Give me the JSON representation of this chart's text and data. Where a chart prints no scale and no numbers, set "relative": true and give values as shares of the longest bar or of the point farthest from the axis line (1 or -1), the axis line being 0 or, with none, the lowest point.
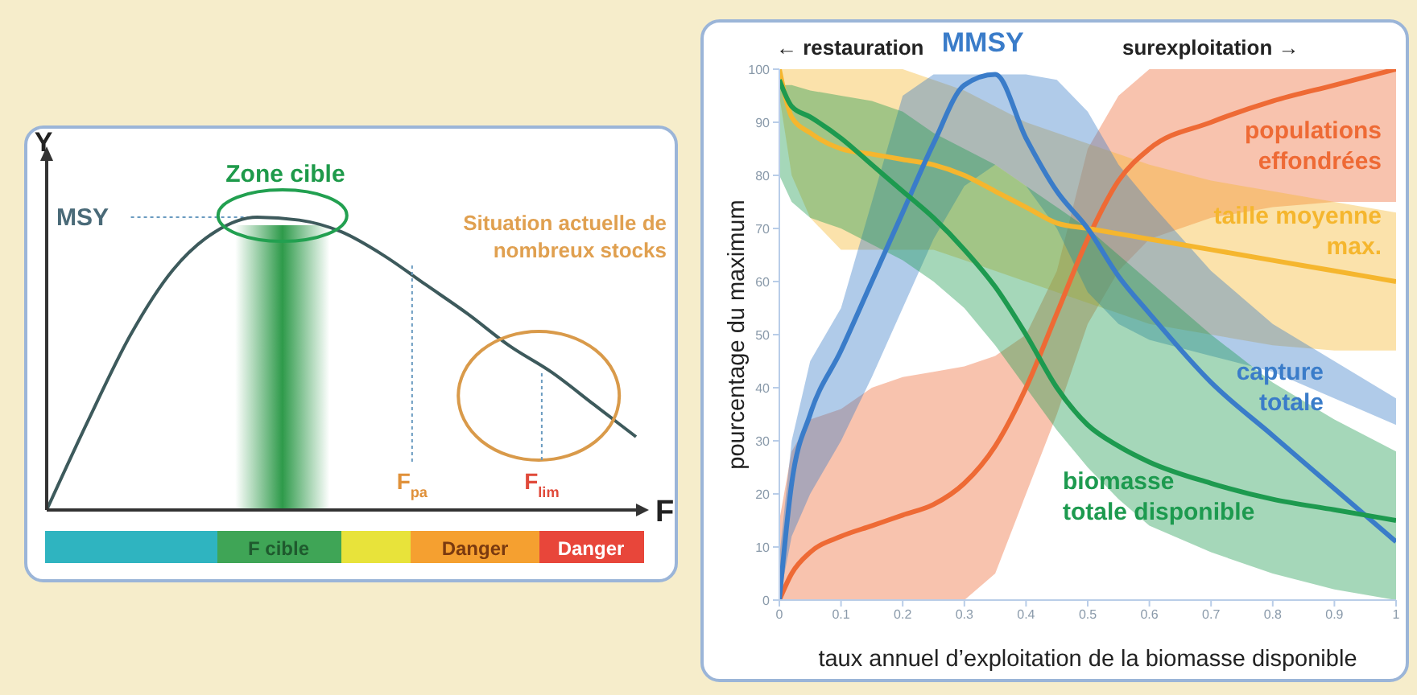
{
  "chart_data": [
    {
      "type": "line",
      "relative": true,
      "xlabel": "F",
      "ylabel": "Y",
      "categories": [
        null,
        null,
        null,
        null,
        null,
        null,
        null,
        null,
        null,
        null,
        null,
        null,
        null,
        null,
        null
      ],
      "values": [
        0,
        0.31,
        0.6,
        0.82,
        0.95,
        1,
        0.99,
        0.95,
        0.87,
        0.77,
        0.67,
        0.56,
        0.47,
        0.36,
        0.25
      ],
      "color": "#3d5a5c",
      "ref_lines": [
        {
          "axis": "y",
          "value": 1,
          "label": "MSY",
          "line_style": "dotted"
        }
      ],
      "annotations": [
        "Zone cible",
        "Situation actuelle de nombreux stocks",
        "F$_{pa}$",
        "F$_{lim}$",
        "F cible",
        "Danger",
        "Danger"
      ]
    },
    {
      "type": "line",
      "xlabel": "taux annuel d’exploitation de la biomasse disponible",
      "ylabel": "pourcentage du maximum",
      "annotations": [
        "← restauration",
        {
          "text": "MMSY",
          "x": 0.33,
          "y": 100
        },
        "surexploitation →"
      ],
      "x": [
        0,
        0.02,
        0.05,
        0.1,
        0.15,
        0.2,
        0.25,
        0.3,
        0.35,
        0.4,
        0.45,
        0.5,
        0.55,
        0.6,
        0.7,
        0.8,
        0.9,
        1
      ],
      "xlim": [
        0,
        1
      ],
      "xticks": [
        0,
        0.1,
        0.2,
        0.3,
        0.4,
        0.5,
        0.6,
        0.7,
        0.8,
        0.9,
        1
      ],
      "ylim": [
        0,
        100
      ],
      "yticks": [
        0,
        10,
        20,
        30,
        40,
        50,
        60,
        70,
        80,
        90,
        100
      ],
      "series": [
        {
          "name": "populations effondrées",
          "color": "#ee6a35",
          "values": [
            0,
            5,
            9,
            12,
            14,
            16,
            18,
            22,
            29,
            40,
            54,
            68,
            79,
            85,
            90,
            94,
            97,
            100
          ],
          "lower": [
            0,
            0,
            0,
            0,
            0,
            0,
            0,
            0,
            5,
            20,
            35,
            52,
            62,
            68,
            72,
            74,
            75,
            75
          ],
          "upper": [
            15,
            28,
            34,
            36,
            40,
            42,
            43,
            44,
            46,
            50,
            62,
            85,
            95,
            100,
            100,
            100,
            100,
            100
          ]
        },
        {
          "name": "taille moyenne max.",
          "color": "#f5b62e",
          "values": [
            100,
            91,
            88,
            85,
            84,
            83,
            82,
            80,
            77,
            74,
            71,
            70,
            69,
            68,
            66,
            64,
            62,
            60
          ],
          "lower": [
            95,
            80,
            72,
            66,
            66,
            66,
            66,
            64,
            62,
            60,
            58,
            56,
            54,
            52,
            50,
            48,
            47,
            47
          ],
          "upper": [
            100,
            100,
            100,
            100,
            100,
            100,
            98,
            96,
            93,
            90,
            88,
            86,
            84,
            82,
            79,
            77,
            75,
            73
          ]
        },
        {
          "name": "capture totale",
          "color": "#3a7cc9",
          "values": [
            0,
            22,
            35,
            47,
            60,
            73,
            86,
            97,
            99,
            87,
            77,
            70,
            61,
            54,
            41,
            31,
            21,
            11
          ],
          "lower": [
            0,
            12,
            20,
            30,
            42,
            55,
            68,
            78,
            82,
            78,
            70,
            58,
            52,
            49,
            46,
            43,
            38,
            33
          ],
          "upper": [
            8,
            30,
            45,
            55,
            75,
            95,
            99,
            99,
            99,
            99,
            98,
            92,
            82,
            75,
            62,
            52,
            45,
            38
          ]
        },
        {
          "name": "biomasse totale disponible",
          "color": "#1d9a4f",
          "values": [
            98,
            93,
            91,
            87,
            82,
            77,
            72,
            66,
            59,
            50,
            40,
            33,
            29,
            26,
            22,
            19,
            17,
            15
          ],
          "lower": [
            80,
            75,
            72,
            70,
            67,
            64,
            60,
            55,
            48,
            40,
            32,
            25,
            19,
            14,
            9,
            5,
            2,
            0
          ],
          "upper": [
            97,
            97,
            96,
            95,
            94,
            92,
            88,
            85,
            82,
            78,
            74,
            70,
            65,
            60,
            50,
            41,
            34,
            28
          ]
        }
      ]
    }
  ]
}
